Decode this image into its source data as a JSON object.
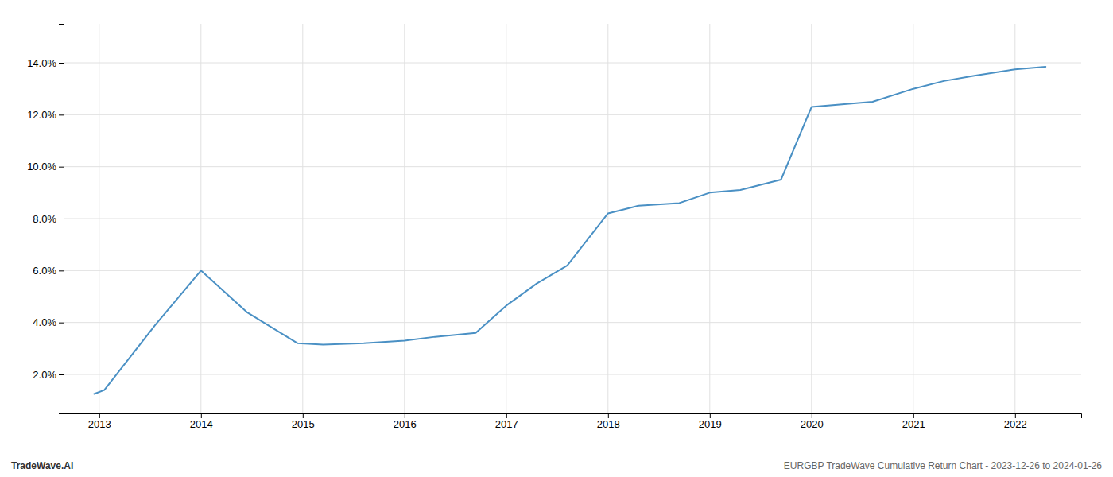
{
  "chart_data": {
    "type": "line",
    "x": [
      2012.95,
      2013.05,
      2013.55,
      2014.0,
      2014.45,
      2014.95,
      2015.2,
      2015.6,
      2016.0,
      2016.3,
      2016.7,
      2017.0,
      2017.3,
      2017.6,
      2018.0,
      2018.3,
      2018.7,
      2019.0,
      2019.3,
      2019.7,
      2020.0,
      2020.3,
      2020.6,
      2021.0,
      2021.3,
      2021.6,
      2022.0,
      2022.3
    ],
    "values": [
      1.25,
      1.4,
      3.9,
      6.0,
      4.4,
      3.2,
      3.15,
      3.2,
      3.3,
      3.45,
      3.6,
      4.65,
      5.5,
      6.2,
      8.2,
      8.5,
      8.6,
      9.0,
      9.1,
      9.5,
      12.3,
      12.4,
      12.5,
      13.0,
      13.3,
      13.5,
      13.75,
      13.85
    ],
    "color": "#4a90c4",
    "xlim": [
      2012.65,
      2022.65
    ],
    "ylim": [
      0.5,
      15.5
    ],
    "xticks": [
      2013,
      2014,
      2015,
      2016,
      2017,
      2018,
      2019,
      2020,
      2021,
      2022
    ],
    "yticks": [
      {
        "value": 2.0,
        "label": "2.0%"
      },
      {
        "value": 4.0,
        "label": "4.0%"
      },
      {
        "value": 6.0,
        "label": "6.0%"
      },
      {
        "value": 8.0,
        "label": "8.0%"
      },
      {
        "value": 10.0,
        "label": "10.0%"
      },
      {
        "value": 12.0,
        "label": "12.0%"
      },
      {
        "value": 14.0,
        "label": "14.0%"
      }
    ],
    "grid": true,
    "annotations": [
      "TradeWave.AI",
      "EURGBP TradeWave Cumulative Return Chart - 2023-12-26 to 2024-01-26"
    ]
  }
}
